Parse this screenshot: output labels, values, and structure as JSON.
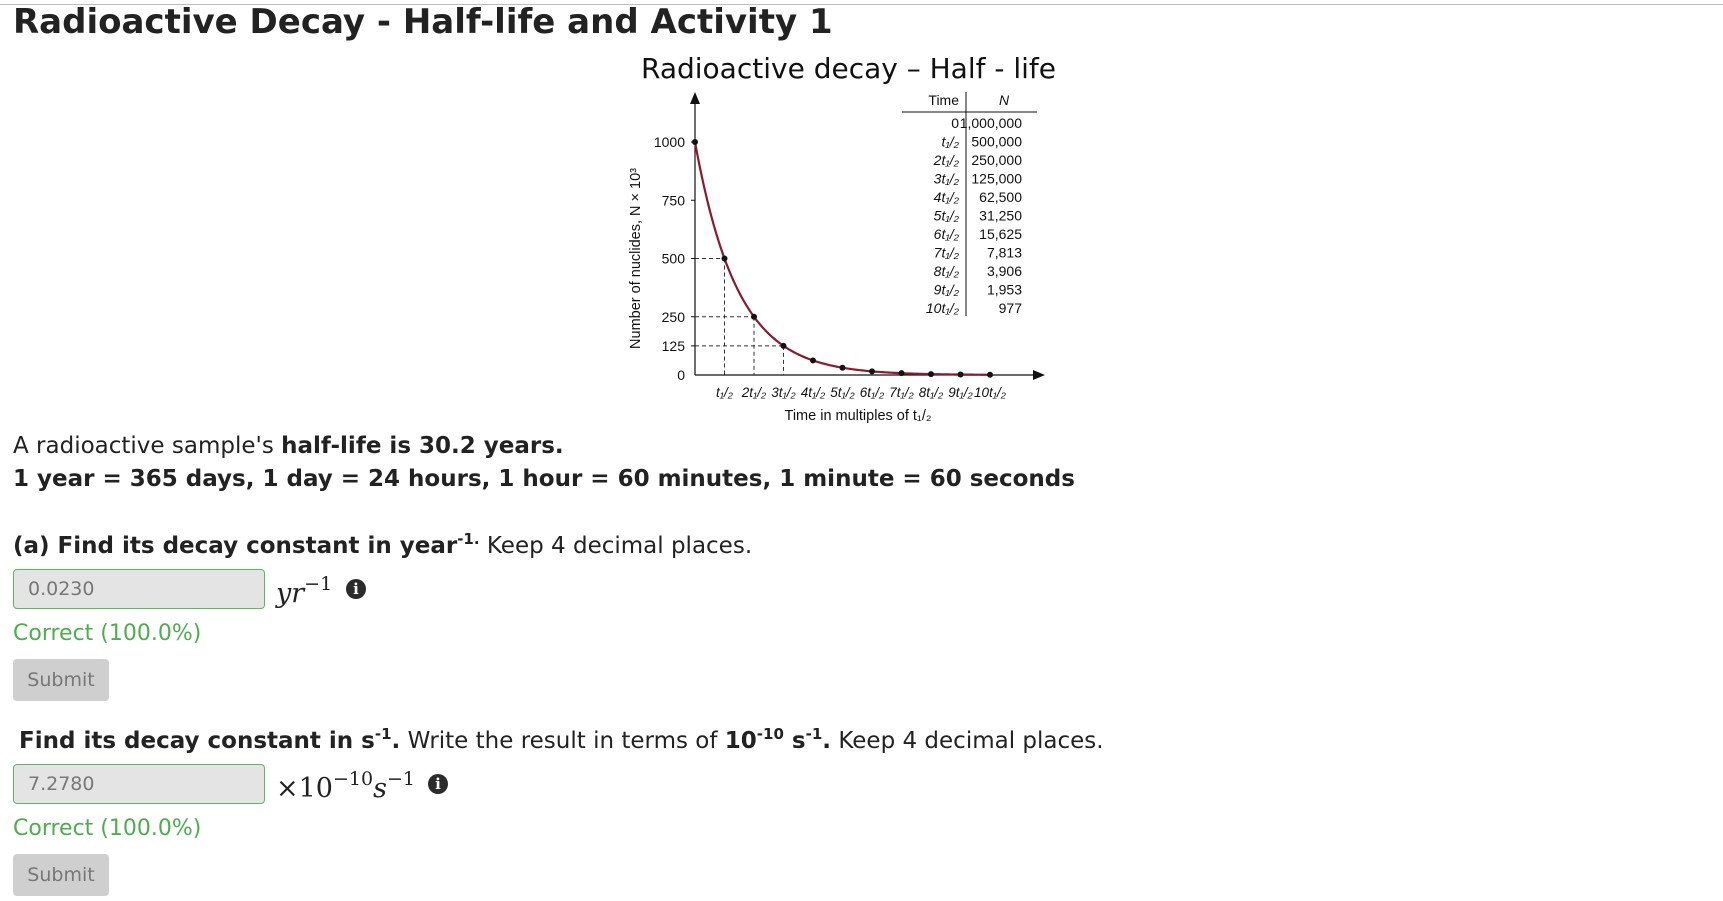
{
  "page": {
    "title": "Radioactive Decay - Half-life and Activity 1"
  },
  "figure": {
    "title": "Radioactive decay – Half - life",
    "chart_data": {
      "type": "line",
      "title": "Radioactive decay – Half - life",
      "xlabel": "Time in multiples of t₁/₂",
      "ylabel": "Number of nuclides, N × 10³",
      "x": [
        0,
        1,
        2,
        3,
        4,
        5,
        6,
        7,
        8,
        9,
        10
      ],
      "x_tick_labels": [
        "t₁/₂",
        "2t₁/₂",
        "3t₁/₂",
        "4t₁/₂",
        "5t₁/₂",
        "6t₁/₂",
        "7t₁/₂",
        "8t₁/₂",
        "9t₁/₂",
        "10t₁/₂"
      ],
      "y_ticks": [
        0,
        125,
        250,
        500,
        750,
        1000
      ],
      "y_tick_labels": [
        "0",
        "125",
        "250",
        "500",
        "750",
        "1000"
      ],
      "y": [
        1000,
        500,
        250,
        125,
        62.5,
        31.25,
        15.625,
        7.813,
        3.906,
        1.953,
        0.977
      ],
      "line_color": "#8b1a2c",
      "ylim": [
        0,
        1000
      ],
      "xlim": [
        0,
        10
      ],
      "table": {
        "headers": [
          "Time",
          "N"
        ],
        "time": [
          "0",
          "t₁/₂",
          "2t₁/₂",
          "3t₁/₂",
          "4t₁/₂",
          "5t₁/₂",
          "6t₁/₂",
          "7t₁/₂",
          "8t₁/₂",
          "9t₁/₂",
          "10t₁/₂"
        ],
        "n": [
          "1,000,000",
          "500,000",
          "250,000",
          "125,000",
          "62,500",
          "31,250",
          "15,625",
          "7,813",
          "3,906",
          "1,953",
          "977"
        ]
      }
    }
  },
  "intro": {
    "p1_prefix": "A radioactive sample's ",
    "p1_bold": "half-life is 30.2 years.",
    "p2_bold": "1 year = 365 days, 1 day = 24 hours, 1 hour = 60 minutes, 1 minute = 60 seconds"
  },
  "question_a": {
    "bold": "(a) Find its decay constant in year",
    "bold_sup": "-1.",
    "rest": " Keep 4 decimal places.",
    "answer_value": "0.0230",
    "unit_base": "yr",
    "unit_exp": "−1",
    "feedback": "Correct (100.0%)",
    "submit_label": "Submit",
    "info_icon": "info-circle-icon"
  },
  "question_b": {
    "bold1": "Find its decay constant in s",
    "bold1_sup": "-1",
    "bold1_dot": ".",
    "text2": " Write the result in terms of ",
    "bold2": "10",
    "bold2_sup": "-10",
    "bold3": " s",
    "bold3_sup": "-1",
    "bold3_dot": ".",
    "rest": " Keep 4 decimal places.",
    "answer_value": "7.2780",
    "unit_times": "×10",
    "unit_exp10": "−10",
    "unit_s": "s",
    "unit_exp_s": "−1",
    "feedback": "Correct (100.0%)",
    "submit_label": "Submit",
    "info_icon": "info-circle-icon"
  },
  "colors": {
    "correct": "#4cae4c",
    "curve": "#8b1a2c"
  }
}
